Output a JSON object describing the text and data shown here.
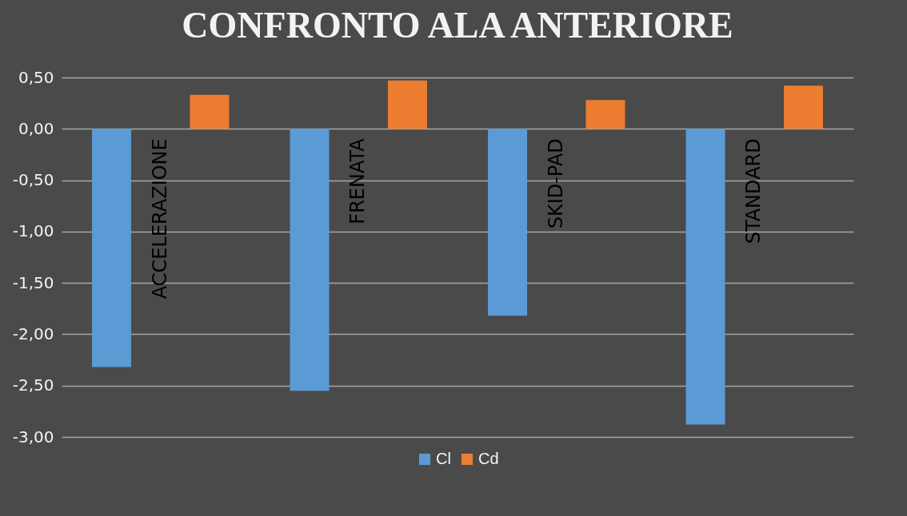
{
  "chart_data": {
    "type": "bar",
    "title": "CONFRONTO ALA ANTERIORE",
    "categories": [
      "ACCELERAZIONE",
      "FRENATA",
      "SKID-PAD",
      "STANDARD"
    ],
    "series": [
      {
        "name": "Cl",
        "color": "#5b9bd5",
        "values": [
          -2.32,
          -2.55,
          -1.82,
          -2.88
        ]
      },
      {
        "name": "Cd",
        "color": "#ed7d31",
        "values": [
          0.33,
          0.47,
          0.28,
          0.42
        ]
      }
    ],
    "ylim": [
      -3,
      0.5
    ],
    "yticks": [
      {
        "value": -3,
        "label": "-3,00"
      },
      {
        "value": -2.5,
        "label": "-2,50"
      },
      {
        "value": -2,
        "label": "-2,00"
      },
      {
        "value": -1.5,
        "label": "-1,50"
      },
      {
        "value": -1,
        "label": "-1,00"
      },
      {
        "value": -0.5,
        "label": "-0,50"
      },
      {
        "value": 0,
        "label": "0,00"
      },
      {
        "value": 0.5,
        "label": "0,50"
      }
    ],
    "grid": "y",
    "legend": "bottom"
  }
}
